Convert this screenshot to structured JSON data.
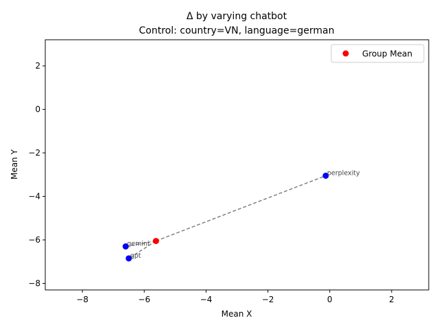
{
  "chart_data": {
    "type": "scatter",
    "title": "Δ by varying chatbot",
    "subtitle": "Control: country=VN, language=german",
    "xlabel": "Mean X",
    "ylabel": "Mean Y",
    "xlim": [
      -9.2,
      3.2
    ],
    "ylim": [
      -8.3,
      3.2
    ],
    "xticks": [
      -8,
      -6,
      -4,
      -2,
      0,
      2
    ],
    "yticks": [
      -8,
      -6,
      -4,
      -2,
      0,
      2
    ],
    "xtick_labels": [
      "−8",
      "−6",
      "−4",
      "−2",
      "0",
      "2"
    ],
    "ytick_labels": [
      "−8",
      "−6",
      "−4",
      "−2",
      "0",
      "2"
    ],
    "grid": false,
    "points": [
      {
        "label": "gemini",
        "x": -6.6,
        "y": -6.3
      },
      {
        "label": "gpt",
        "x": -6.5,
        "y": -6.85
      },
      {
        "label": "perplexity",
        "x": -0.13,
        "y": -3.05
      }
    ],
    "group_mean": {
      "x": -5.62,
      "y": -6.05
    },
    "legend": {
      "position": "top-right",
      "label": "Group Mean"
    },
    "colors": {
      "point": "#0000ff",
      "mean": "#ff0000",
      "line": "#808080",
      "label": "#444444"
    }
  }
}
